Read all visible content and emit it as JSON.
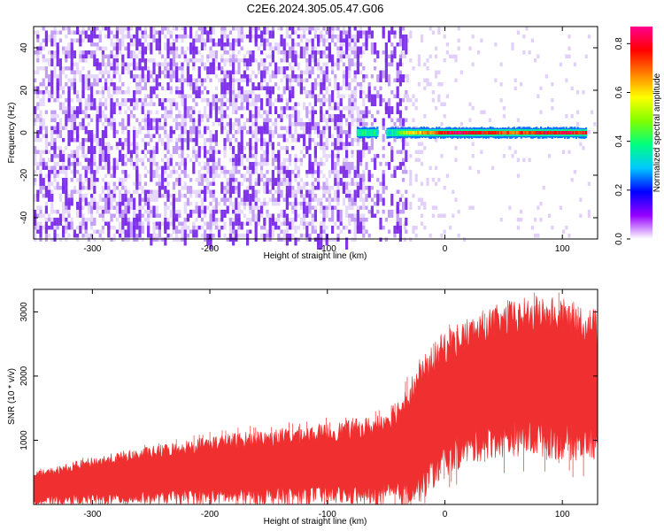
{
  "title": "C2E6.2024.305.05.47.G06",
  "colors": {
    "snr_line": "#f03030",
    "background_dot": "#7a2be8",
    "colormap": [
      "#ffffff",
      "#9400ff",
      "#0000ff",
      "#00c8ff",
      "#00ff80",
      "#80ff00",
      "#ffff00",
      "#ff8000",
      "#ff0000",
      "#ff0090"
    ]
  },
  "chart_data": [
    {
      "type": "heatmap",
      "name": "spectrogram",
      "xlabel": "Height of straight line (km)",
      "ylabel": "Frequency (Hz)",
      "xlim": [
        -350,
        130
      ],
      "ylim": [
        -50,
        50
      ],
      "xticks": [
        -300,
        -200,
        -100,
        0,
        100
      ],
      "xtick_labels": [
        "-300",
        "-200",
        "-100",
        "0",
        "100"
      ],
      "yticks": [
        -40,
        -20,
        0,
        20,
        40
      ],
      "ytick_labels": [
        "-40",
        "-20",
        "0",
        "20",
        "40"
      ],
      "colorbar": {
        "label": "Normalized spectral amplitude",
        "range": [
          0,
          0.87
        ],
        "ticks": [
          0.0,
          0.2,
          0.4,
          0.6,
          0.8
        ],
        "tick_labels": [
          "0.0",
          "0.2",
          "0.4",
          "0.6",
          "0.8"
        ]
      },
      "noise_region": {
        "x_from": -350,
        "x_to": -40,
        "frequency_range": [
          -50,
          50
        ],
        "typical_amplitude": 0.05
      },
      "sparse_noise_region": {
        "x_from": -40,
        "x_to": 130,
        "typical_amplitude": 0.02
      },
      "signal_line": {
        "frequency_hz": 0,
        "points": [
          {
            "x": -75,
            "amplitude": 0.35
          },
          {
            "x": -65,
            "amplitude": 0.4
          },
          {
            "x": -52,
            "amplitude": 0.3
          },
          {
            "x": -45,
            "amplitude": 0.35
          },
          {
            "x": -30,
            "amplitude": 0.6
          },
          {
            "x": -10,
            "amplitude": 0.7
          },
          {
            "x": 5,
            "amplitude": 0.82
          },
          {
            "x": 20,
            "amplitude": 0.8
          },
          {
            "x": 40,
            "amplitude": 0.75
          },
          {
            "x": 60,
            "amplitude": 0.7
          },
          {
            "x": 80,
            "amplitude": 0.78
          },
          {
            "x": 100,
            "amplitude": 0.8
          },
          {
            "x": 120,
            "amplitude": 0.75
          }
        ]
      }
    },
    {
      "type": "area",
      "name": "snr",
      "xlabel": "Height of straight line (km)",
      "ylabel": "SNR (10 * v/v)",
      "xlim": [
        -350,
        130
      ],
      "ylim": [
        0,
        3350
      ],
      "xticks": [
        -300,
        -200,
        -100,
        0,
        100
      ],
      "xtick_labels": [
        "-300",
        "-200",
        "-100",
        "0",
        "100"
      ],
      "yticks": [
        1000,
        2000,
        3000
      ],
      "ytick_labels": [
        "1000",
        "2000",
        "3000"
      ],
      "envelope": {
        "x": [
          -350,
          -300,
          -250,
          -200,
          -150,
          -100,
          -60,
          -40,
          -20,
          0,
          20,
          40,
          60,
          80,
          100,
          130
        ],
        "upper": [
          420,
          620,
          760,
          900,
          980,
          1060,
          1150,
          1380,
          1900,
          2350,
          2550,
          2700,
          2800,
          2850,
          2800,
          2650
        ],
        "lower": [
          80,
          120,
          150,
          180,
          190,
          220,
          200,
          250,
          400,
          800,
          1000,
          1100,
          1150,
          1150,
          1100,
          1050
        ],
        "peak_max": 3300
      }
    }
  ]
}
